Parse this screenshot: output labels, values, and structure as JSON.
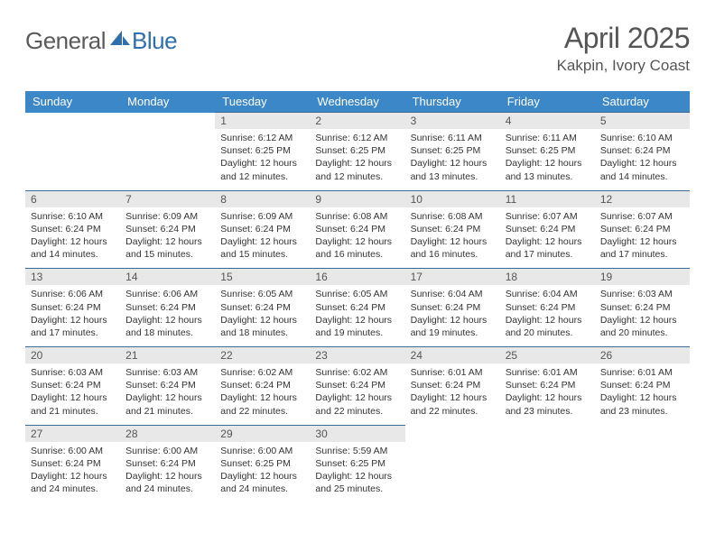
{
  "logo": {
    "text_general": "General",
    "text_blue": "Blue",
    "icon_color": "#2f6fad"
  },
  "header": {
    "month_title": "April 2025",
    "location": "Kakpin, Ivory Coast"
  },
  "colors": {
    "header_bg": "#3b87c8",
    "header_fg": "#ffffff",
    "daynum_bg": "#e8e8e8",
    "row_border": "#3b6a99",
    "text": "#333333"
  },
  "weekdays": [
    "Sunday",
    "Monday",
    "Tuesday",
    "Wednesday",
    "Thursday",
    "Friday",
    "Saturday"
  ],
  "weeks": [
    [
      null,
      null,
      {
        "n": "1",
        "sr": "6:12 AM",
        "ss": "6:25 PM",
        "dl": "12 hours and 12 minutes."
      },
      {
        "n": "2",
        "sr": "6:12 AM",
        "ss": "6:25 PM",
        "dl": "12 hours and 12 minutes."
      },
      {
        "n": "3",
        "sr": "6:11 AM",
        "ss": "6:25 PM",
        "dl": "12 hours and 13 minutes."
      },
      {
        "n": "4",
        "sr": "6:11 AM",
        "ss": "6:25 PM",
        "dl": "12 hours and 13 minutes."
      },
      {
        "n": "5",
        "sr": "6:10 AM",
        "ss": "6:24 PM",
        "dl": "12 hours and 14 minutes."
      }
    ],
    [
      {
        "n": "6",
        "sr": "6:10 AM",
        "ss": "6:24 PM",
        "dl": "12 hours and 14 minutes."
      },
      {
        "n": "7",
        "sr": "6:09 AM",
        "ss": "6:24 PM",
        "dl": "12 hours and 15 minutes."
      },
      {
        "n": "8",
        "sr": "6:09 AM",
        "ss": "6:24 PM",
        "dl": "12 hours and 15 minutes."
      },
      {
        "n": "9",
        "sr": "6:08 AM",
        "ss": "6:24 PM",
        "dl": "12 hours and 16 minutes."
      },
      {
        "n": "10",
        "sr": "6:08 AM",
        "ss": "6:24 PM",
        "dl": "12 hours and 16 minutes."
      },
      {
        "n": "11",
        "sr": "6:07 AM",
        "ss": "6:24 PM",
        "dl": "12 hours and 17 minutes."
      },
      {
        "n": "12",
        "sr": "6:07 AM",
        "ss": "6:24 PM",
        "dl": "12 hours and 17 minutes."
      }
    ],
    [
      {
        "n": "13",
        "sr": "6:06 AM",
        "ss": "6:24 PM",
        "dl": "12 hours and 17 minutes."
      },
      {
        "n": "14",
        "sr": "6:06 AM",
        "ss": "6:24 PM",
        "dl": "12 hours and 18 minutes."
      },
      {
        "n": "15",
        "sr": "6:05 AM",
        "ss": "6:24 PM",
        "dl": "12 hours and 18 minutes."
      },
      {
        "n": "16",
        "sr": "6:05 AM",
        "ss": "6:24 PM",
        "dl": "12 hours and 19 minutes."
      },
      {
        "n": "17",
        "sr": "6:04 AM",
        "ss": "6:24 PM",
        "dl": "12 hours and 19 minutes."
      },
      {
        "n": "18",
        "sr": "6:04 AM",
        "ss": "6:24 PM",
        "dl": "12 hours and 20 minutes."
      },
      {
        "n": "19",
        "sr": "6:03 AM",
        "ss": "6:24 PM",
        "dl": "12 hours and 20 minutes."
      }
    ],
    [
      {
        "n": "20",
        "sr": "6:03 AM",
        "ss": "6:24 PM",
        "dl": "12 hours and 21 minutes."
      },
      {
        "n": "21",
        "sr": "6:03 AM",
        "ss": "6:24 PM",
        "dl": "12 hours and 21 minutes."
      },
      {
        "n": "22",
        "sr": "6:02 AM",
        "ss": "6:24 PM",
        "dl": "12 hours and 22 minutes."
      },
      {
        "n": "23",
        "sr": "6:02 AM",
        "ss": "6:24 PM",
        "dl": "12 hours and 22 minutes."
      },
      {
        "n": "24",
        "sr": "6:01 AM",
        "ss": "6:24 PM",
        "dl": "12 hours and 22 minutes."
      },
      {
        "n": "25",
        "sr": "6:01 AM",
        "ss": "6:24 PM",
        "dl": "12 hours and 23 minutes."
      },
      {
        "n": "26",
        "sr": "6:01 AM",
        "ss": "6:24 PM",
        "dl": "12 hours and 23 minutes."
      }
    ],
    [
      {
        "n": "27",
        "sr": "6:00 AM",
        "ss": "6:24 PM",
        "dl": "12 hours and 24 minutes."
      },
      {
        "n": "28",
        "sr": "6:00 AM",
        "ss": "6:24 PM",
        "dl": "12 hours and 24 minutes."
      },
      {
        "n": "29",
        "sr": "6:00 AM",
        "ss": "6:25 PM",
        "dl": "12 hours and 24 minutes."
      },
      {
        "n": "30",
        "sr": "5:59 AM",
        "ss": "6:25 PM",
        "dl": "12 hours and 25 minutes."
      },
      null,
      null,
      null
    ]
  ],
  "labels": {
    "sunrise": "Sunrise:",
    "sunset": "Sunset:",
    "daylight": "Daylight:"
  }
}
